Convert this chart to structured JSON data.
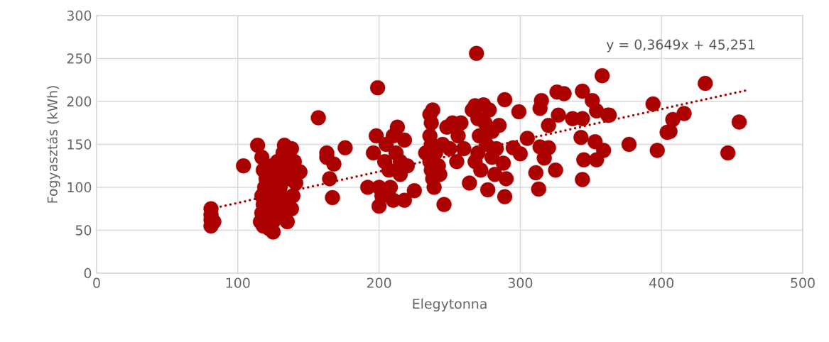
{
  "chart_data": {
    "type": "scatter",
    "xlabel": "Elegytonna",
    "ylabel": "Fogyasztás (kWh)",
    "xlim": [
      0,
      500
    ],
    "ylim": [
      0,
      300
    ],
    "xticks": [
      0,
      100,
      200,
      300,
      400,
      500
    ],
    "yticks": [
      0,
      50,
      100,
      150,
      200,
      250,
      300
    ],
    "grid": true,
    "annotations": [
      "y = 0,3649x + 45,251"
    ],
    "series": [
      {
        "marker": "circle",
        "color": "#aa0000",
        "x": [
          81,
          81,
          81,
          81,
          83,
          104,
          114,
          133,
          117,
          118,
          120,
          119,
          117,
          118,
          117,
          116,
          118,
          122,
          125,
          125,
          124,
          123,
          126,
          125,
          127,
          124,
          128,
          130,
          130,
          131,
          130,
          132,
          135,
          134,
          136,
          135,
          138,
          140,
          140,
          141,
          139,
          138,
          144,
          132,
          157,
          163,
          163,
          165,
          167,
          168,
          176,
          192,
          196,
          198,
          199,
          200,
          200,
          202,
          204,
          205,
          207,
          208,
          210,
          210,
          212,
          213,
          215,
          215,
          218,
          218,
          220,
          225,
          233,
          236,
          238,
          237,
          236,
          237,
          236,
          237,
          238,
          239,
          240,
          242,
          243,
          245,
          246,
          248,
          250,
          252,
          255,
          256,
          260,
          258,
          264,
          266,
          268,
          269,
          270,
          271,
          270,
          268,
          272,
          274,
          275,
          276,
          277,
          278,
          280,
          280,
          282,
          283,
          285,
          288,
          289,
          290,
          289,
          295,
          299,
          300,
          305,
          311,
          313,
          314,
          314,
          315,
          317,
          320,
          320,
          325,
          326,
          327,
          331,
          337,
          343,
          344,
          344,
          344,
          345,
          351,
          353,
          354,
          354,
          358,
          359,
          362,
          363,
          377,
          394,
          397,
          404,
          406,
          408,
          416,
          431,
          447,
          455
        ],
        "values": [
          75,
          68,
          62,
          55,
          60,
          125,
          149,
          149,
          135,
          120,
          110,
          100,
          90,
          80,
          70,
          60,
          55,
          52,
          48,
          60,
          70,
          85,
          95,
          105,
          115,
          125,
          130,
          118,
          100,
          90,
          75,
          65,
          60,
          80,
          110,
          125,
          145,
          130,
          120,
          105,
          90,
          75,
          118,
          140,
          181,
          140,
          135,
          110,
          88,
          127,
          146,
          100,
          140,
          160,
          216,
          78,
          100,
          90,
          130,
          150,
          120,
          100,
          85,
          160,
          140,
          170,
          130,
          115,
          155,
          85,
          125,
          96,
          140,
          185,
          190,
          175,
          160,
          150,
          130,
          120,
          110,
          100,
          140,
          125,
          115,
          150,
          80,
          170,
          145,
          175,
          130,
          160,
          145,
          175,
          105,
          190,
          195,
          256,
          180,
          160,
          140,
          130,
          120,
          196,
          175,
          150,
          97,
          190,
          135,
          165,
          115,
          145,
          172,
          128,
          89,
          110,
          202,
          146,
          188,
          139,
          157,
          117,
          98,
          147,
          192,
          201,
          134,
          146,
          172,
          120,
          211,
          184,
          209,
          180,
          158,
          212,
          180,
          109,
          132,
          201,
          153,
          189,
          132,
          230,
          143,
          184,
          184,
          150,
          197,
          143,
          164,
          165,
          179,
          186,
          221,
          140,
          176
        ]
      },
      {
        "type": "line",
        "marker": "none",
        "line_style": "dotted",
        "color": "#aa0000",
        "x": [
          81,
          460
        ],
        "values": [
          75,
          213
        ]
      }
    ]
  }
}
